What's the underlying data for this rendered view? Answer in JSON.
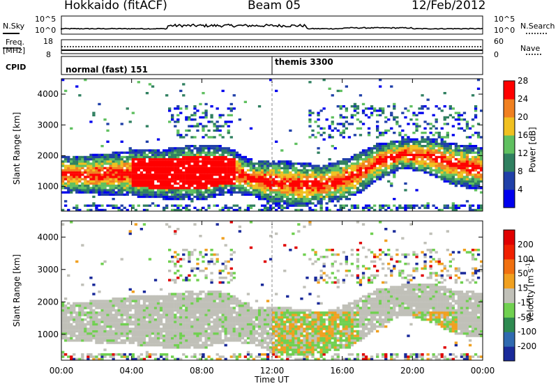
{
  "header": {
    "station": "Hokkaido (fitACF)",
    "beam": "Beam 05",
    "date": "12/Feb/2012"
  },
  "noise_panel": {
    "left_label": "N.Sky",
    "right_label": "N.Search",
    "tick_top": "10^5",
    "tick_bottom": "10^0"
  },
  "freq_panel": {
    "left_label_1": "Freq.",
    "left_label_2": "[MHz]",
    "left_tick_top": "18",
    "left_tick_bottom": "8",
    "right_label": "Nave",
    "right_tick_top": "60",
    "right_tick_bottom": "0"
  },
  "cpid_panel": {
    "label": "CPID",
    "mode_1": "normal (fast) 151",
    "mode_2": "themis 3300",
    "mode_change_time_hr": 12.0
  },
  "colors": {
    "range_gate_fill": "#ffffff",
    "frame": "#000000",
    "ground_scatter": "#c0c0b8"
  },
  "chart_data": [
    {
      "type": "heatmap",
      "name": "power",
      "xlabel": "Time UT",
      "ylabel": "Slant Range [km]",
      "xlim": [
        0,
        24
      ],
      "ylim": [
        200,
        4500
      ],
      "x_tick_labels": [
        "00:00",
        "04:00",
        "08:00",
        "12:00",
        "16:00",
        "20:00",
        "00:00"
      ],
      "y_ticks": [
        1000,
        2000,
        3000,
        4000
      ],
      "colorbar": {
        "label": "Power [dB]",
        "ticks": [
          "4",
          "8",
          "12",
          "16",
          "20",
          "24",
          "28"
        ],
        "colors": [
          "#0000ee",
          "#2040a8",
          "#308060",
          "#60c060",
          "#f0c020",
          "#f08020",
          "#ff0000"
        ]
      },
      "main_echo_band_km": [
        {
          "t": 0,
          "lo": 900,
          "hi": 1800
        },
        {
          "t": 2,
          "lo": 850,
          "hi": 1850
        },
        {
          "t": 4,
          "lo": 800,
          "hi": 2000
        },
        {
          "t": 6,
          "lo": 700,
          "hi": 2050
        },
        {
          "t": 8,
          "lo": 650,
          "hi": 2200
        },
        {
          "t": 9.5,
          "lo": 900,
          "hi": 2100
        },
        {
          "t": 11,
          "lo": 800,
          "hi": 1600
        },
        {
          "t": 12,
          "lo": 550,
          "hi": 1700
        },
        {
          "t": 13.5,
          "lo": 450,
          "hi": 1600
        },
        {
          "t": 15,
          "lo": 550,
          "hi": 1500
        },
        {
          "t": 16.5,
          "lo": 700,
          "hi": 1800
        },
        {
          "t": 18,
          "lo": 1300,
          "hi": 2200
        },
        {
          "t": 19.5,
          "lo": 1700,
          "hi": 2350
        },
        {
          "t": 21,
          "lo": 1500,
          "hi": 2400
        },
        {
          "t": 22.5,
          "lo": 1100,
          "hi": 2200
        },
        {
          "t": 24,
          "lo": 1000,
          "hi": 2100
        }
      ]
    },
    {
      "type": "heatmap",
      "name": "velocity",
      "xlabel": "Time UT",
      "ylabel": "Slant Range [km]",
      "xlim": [
        0,
        24
      ],
      "ylim": [
        200,
        4500
      ],
      "x_tick_labels": [
        "00:00",
        "04:00",
        "08:00",
        "12:00",
        "16:00",
        "20:00",
        "00:00"
      ],
      "y_ticks": [
        1000,
        2000,
        3000,
        4000
      ],
      "colorbar": {
        "label": "Velocity [m s-1]",
        "label_main": "Velocity [m s",
        "label_sup": "-1",
        "label_end": "]",
        "ticks": [
          "200",
          "100",
          "50",
          "15",
          "-15",
          "-50",
          "-100",
          "-200"
        ],
        "colors": [
          "#1a2a9a",
          "#306ab0",
          "#2e8a50",
          "#70d050",
          "#c0c0b8",
          "#f0a020",
          "#f07010",
          "#f02000",
          "#e00000"
        ]
      }
    }
  ]
}
